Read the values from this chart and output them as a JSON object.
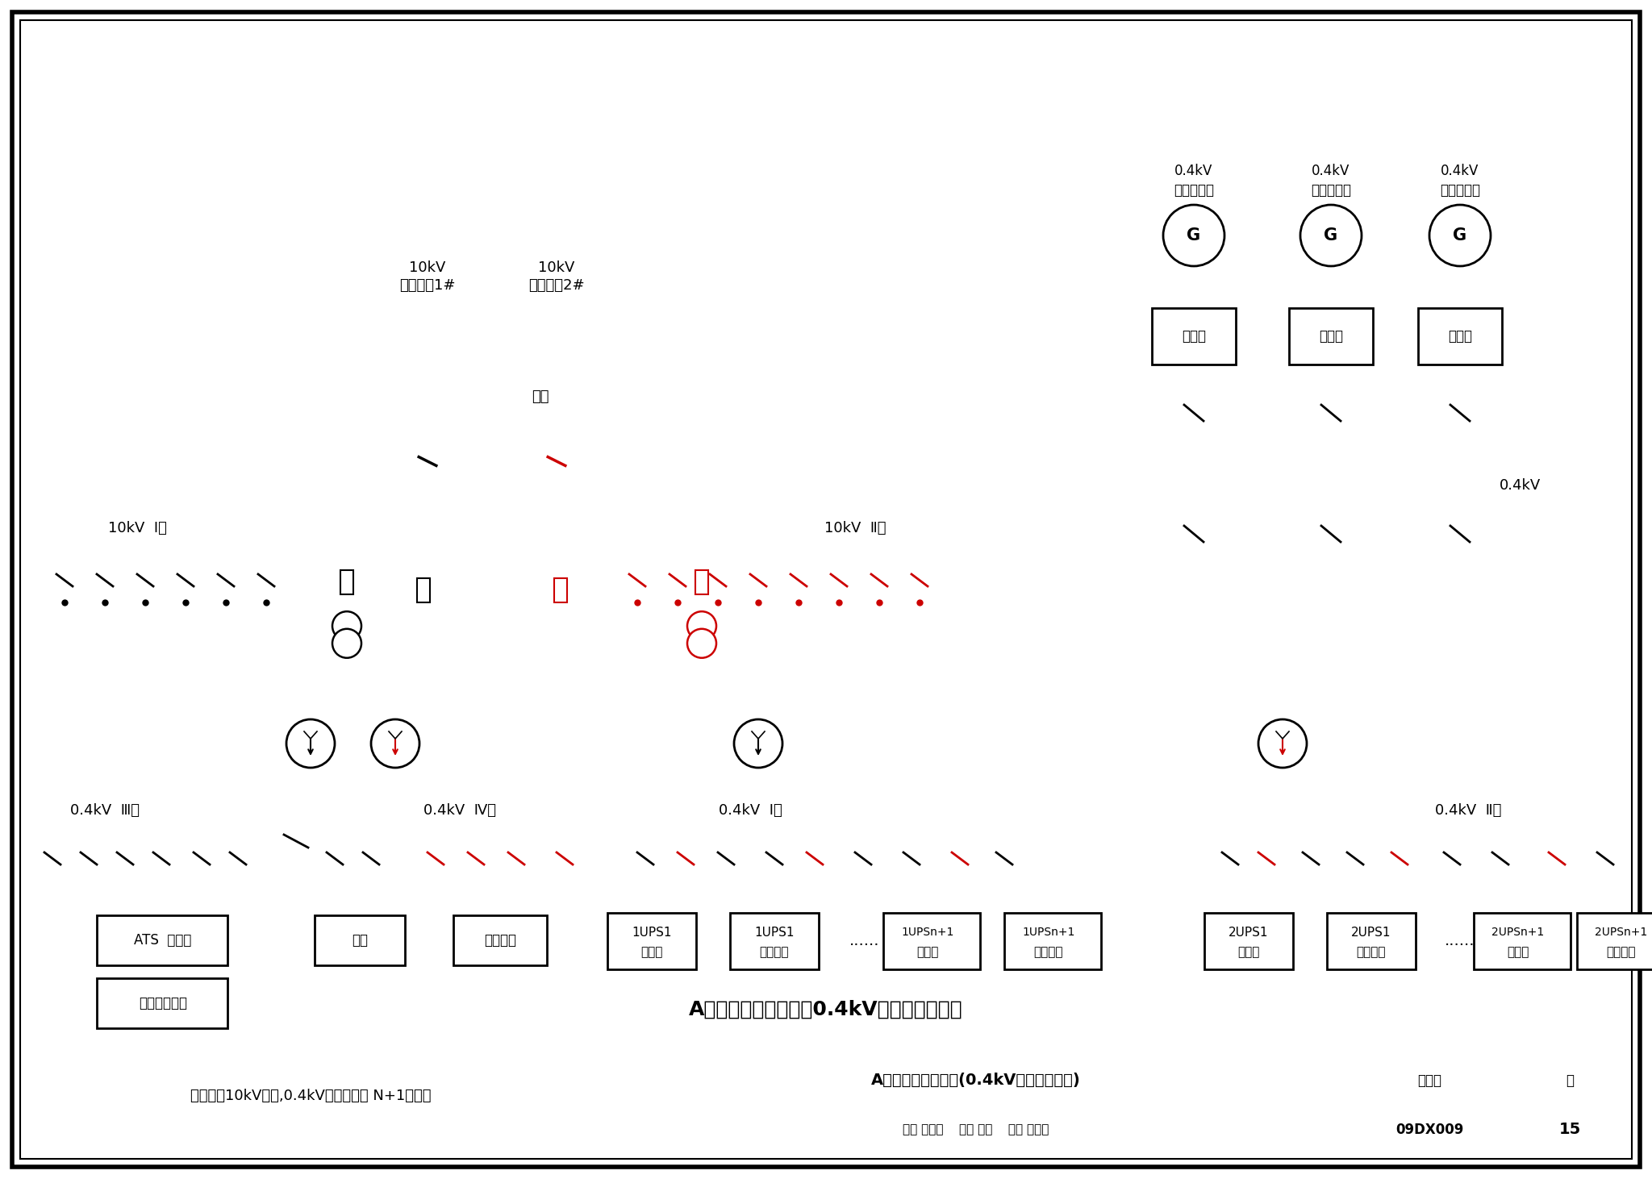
{
  "bg_color": "#ffffff",
  "BK": "#000000",
  "RD": "#cc0000",
  "title": "A级机房供电系统图（0.4kV柴油发电机组）",
  "footer_title": "A级机房供电系统图(0.4kV柴油发电机组)",
  "footer_catalog_label": "图集号",
  "footer_catalog_val": "09DX009",
  "footer_page_label": "页",
  "footer_page_val": "15",
  "note": "注：两路10kV电源,0.4kV柴油发电机 N+1配置。",
  "s1_label1": "10kV",
  "s1_label2": "市电电源1#",
  "s2_label1": "10kV",
  "s2_label2": "市电电源2#",
  "lianso": "联锁",
  "bus1_label": "10kV  Ⅰ段",
  "bus2_label": "10kV  Ⅱ段",
  "gen_label1": "0.4kV",
  "gen_label2": "柴油发电机",
  "gen_G": "G",
  "ctrl": "控制屏",
  "gen_bus_label": "0.4kV",
  "b3_label": "0.4kV  Ⅲ段",
  "b4_label": "0.4kV  Ⅳ段",
  "bI_label": "0.4kV  Ⅰ段",
  "bII_label": "0.4kV  Ⅱ段",
  "ats_label": "ATS  配电柜",
  "zhao_label": "照明",
  "other_label": "其他负荷",
  "ac_label": "机房专用空调",
  "ups1_main": "1UPS1",
  "ups1_main2": "主电源",
  "ups1_bypass": "1UPS1",
  "ups1_bypass2": "旁路电源",
  "ups1n_main": "1UPSn+1",
  "ups1n_main2": "主电源",
  "ups1n_bypass": "1UPSn+1",
  "ups1n_bypass2": "旁路电源",
  "ups2_main": "2UPS1",
  "ups2_main2": "主电源",
  "ups2_bypass": "2UPS1",
  "ups2_bypass2": "旁路电源",
  "ups2n_main": "2UPSn+1",
  "ups2n_main2": "主电源",
  "ups2n_bypass": "2UPSn+1",
  "ups2n_bypass2": "旁路电源",
  "dots": "......",
  "footer_sign": "审核钟景华    校对孙兰    设计张大光"
}
